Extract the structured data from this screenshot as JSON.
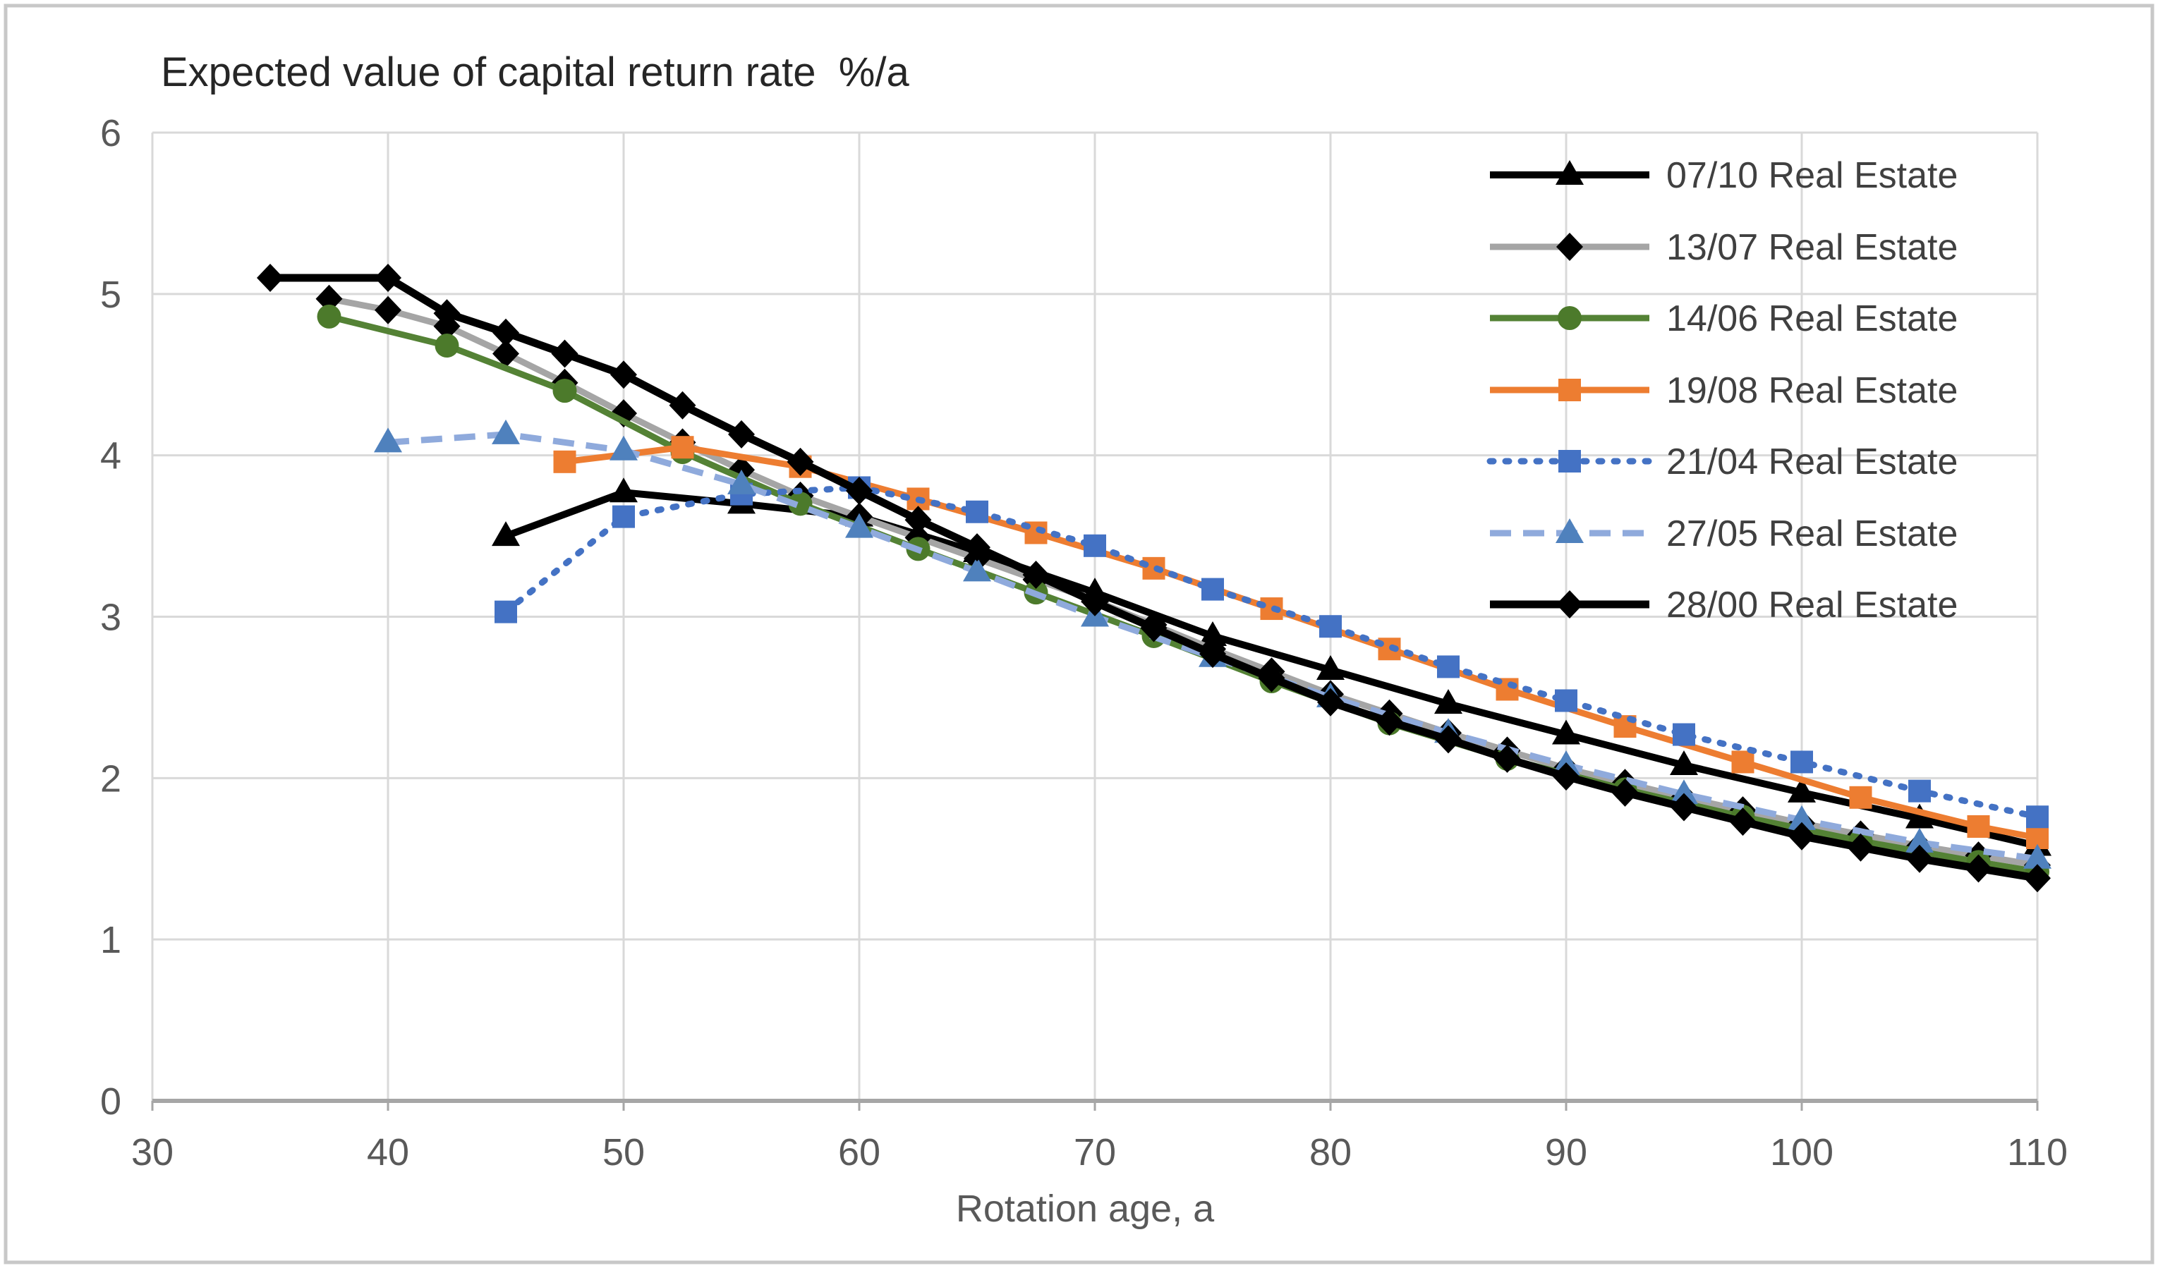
{
  "chart_data": {
    "type": "line",
    "title": "Expected value of capital return rate  %/a",
    "xlabel": "Rotation age, a",
    "ylabel": "",
    "xlim": [
      30,
      110
    ],
    "ylim": [
      0,
      6
    ],
    "x_ticks": [
      "30",
      "40",
      "50",
      "60",
      "70",
      "80",
      "90",
      "100",
      "110"
    ],
    "y_ticks": [
      "0",
      "1",
      "2",
      "3",
      "4",
      "5",
      "6"
    ],
    "grid": true,
    "legend_position": "top-right-inside",
    "series": [
      {
        "name": "07/10 Real Estate",
        "line_color": "#000000",
        "line_style": "solid",
        "line_width": 10,
        "marker": "triangle",
        "marker_color": "#000000",
        "points": [
          [
            45,
            3.5
          ],
          [
            50,
            3.77
          ],
          [
            55,
            3.7
          ],
          [
            60,
            3.62
          ],
          [
            65,
            3.4
          ],
          [
            70,
            3.15
          ],
          [
            75,
            2.88
          ],
          [
            80,
            2.67
          ],
          [
            85,
            2.46
          ],
          [
            90,
            2.27
          ],
          [
            95,
            2.08
          ],
          [
            100,
            1.91
          ],
          [
            105,
            1.75
          ],
          [
            110,
            1.58
          ]
        ]
      },
      {
        "name": "13/07 Real Estate",
        "line_color": "#A5A5A5",
        "line_style": "solid",
        "line_width": 9,
        "marker": "diamond",
        "marker_color": "#000000",
        "points": [
          [
            37.5,
            4.97
          ],
          [
            40,
            4.9
          ],
          [
            42.5,
            4.8
          ],
          [
            45,
            4.63
          ],
          [
            47.5,
            4.45
          ],
          [
            50,
            4.26
          ],
          [
            52.5,
            4.08
          ],
          [
            55,
            3.91
          ],
          [
            57.5,
            3.75
          ],
          [
            60,
            3.62
          ],
          [
            62.5,
            3.49
          ],
          [
            65,
            3.36
          ],
          [
            67.5,
            3.23
          ],
          [
            70,
            3.1
          ],
          [
            72.5,
            2.95
          ],
          [
            75,
            2.8
          ],
          [
            77.5,
            2.66
          ],
          [
            80,
            2.52
          ],
          [
            82.5,
            2.4
          ],
          [
            85,
            2.28
          ],
          [
            87.5,
            2.17
          ],
          [
            90,
            2.06
          ],
          [
            92.5,
            1.97
          ],
          [
            95,
            1.88
          ],
          [
            97.5,
            1.8
          ],
          [
            100,
            1.72
          ],
          [
            102.5,
            1.65
          ],
          [
            105,
            1.58
          ],
          [
            107.5,
            1.52
          ],
          [
            110,
            1.46
          ]
        ]
      },
      {
        "name": "14/06 Real Estate",
        "line_color": "#548235",
        "line_style": "solid",
        "line_width": 9,
        "marker": "circle",
        "marker_color": "#4C7A2B",
        "points": [
          [
            37.5,
            4.86
          ],
          [
            42.5,
            4.68
          ],
          [
            47.5,
            4.4
          ],
          [
            52.5,
            4.02
          ],
          [
            57.5,
            3.7
          ],
          [
            62.5,
            3.42
          ],
          [
            67.5,
            3.15
          ],
          [
            72.5,
            2.88
          ],
          [
            77.5,
            2.6
          ],
          [
            82.5,
            2.34
          ],
          [
            87.5,
            2.12
          ],
          [
            92.5,
            1.93
          ],
          [
            97.5,
            1.76
          ],
          [
            102.5,
            1.61
          ],
          [
            107.5,
            1.48
          ],
          [
            110,
            1.42
          ]
        ]
      },
      {
        "name": "19/08 Real Estate",
        "line_color": "#ED7D31",
        "line_style": "solid",
        "line_width": 9,
        "marker": "square",
        "marker_color": "#ED7D31",
        "points": [
          [
            47.5,
            3.96
          ],
          [
            52.5,
            4.05
          ],
          [
            57.5,
            3.93
          ],
          [
            62.5,
            3.73
          ],
          [
            67.5,
            3.52
          ],
          [
            72.5,
            3.3
          ],
          [
            77.5,
            3.05
          ],
          [
            82.5,
            2.8
          ],
          [
            87.5,
            2.55
          ],
          [
            92.5,
            2.32
          ],
          [
            97.5,
            2.1
          ],
          [
            102.5,
            1.88
          ],
          [
            107.5,
            1.7
          ],
          [
            110,
            1.63
          ]
        ]
      },
      {
        "name": "21/04 Real Estate",
        "line_color": "#4472C4",
        "line_style": "dotted",
        "line_width": 9,
        "marker": "square",
        "marker_color": "#4472C4",
        "points": [
          [
            45,
            3.03
          ],
          [
            50,
            3.62
          ],
          [
            55,
            3.76
          ],
          [
            60,
            3.8
          ],
          [
            65,
            3.65
          ],
          [
            70,
            3.44
          ],
          [
            75,
            3.17
          ],
          [
            80,
            2.94
          ],
          [
            85,
            2.69
          ],
          [
            90,
            2.48
          ],
          [
            95,
            2.27
          ],
          [
            100,
            2.1
          ],
          [
            105,
            1.92
          ],
          [
            110,
            1.76
          ]
        ]
      },
      {
        "name": "27/05 Real Estate",
        "line_color": "#8FAADC",
        "line_style": "dashed",
        "line_width": 9,
        "marker": "triangle",
        "marker_color": "#4F81BD",
        "points": [
          [
            40,
            4.08
          ],
          [
            45,
            4.13
          ],
          [
            50,
            4.03
          ],
          [
            55,
            3.82
          ],
          [
            60,
            3.55
          ],
          [
            65,
            3.28
          ],
          [
            70,
            3.0
          ],
          [
            75,
            2.75
          ],
          [
            80,
            2.5
          ],
          [
            85,
            2.28
          ],
          [
            90,
            2.08
          ],
          [
            95,
            1.9
          ],
          [
            100,
            1.74
          ],
          [
            105,
            1.6
          ],
          [
            110,
            1.5
          ]
        ]
      },
      {
        "name": "28/00 Real Estate",
        "line_color": "#000000",
        "line_style": "solid",
        "line_width": 11,
        "marker": "diamond",
        "marker_color": "#000000",
        "points": [
          [
            35,
            5.1
          ],
          [
            40,
            5.1
          ],
          [
            42.5,
            4.88
          ],
          [
            45,
            4.76
          ],
          [
            47.5,
            4.63
          ],
          [
            50,
            4.5
          ],
          [
            52.5,
            4.31
          ],
          [
            55,
            4.13
          ],
          [
            57.5,
            3.96
          ],
          [
            60,
            3.78
          ],
          [
            62.5,
            3.6
          ],
          [
            65,
            3.43
          ],
          [
            67.5,
            3.26
          ],
          [
            70,
            3.09
          ],
          [
            72.5,
            2.93
          ],
          [
            75,
            2.77
          ],
          [
            77.5,
            2.62
          ],
          [
            80,
            2.47
          ],
          [
            82.5,
            2.35
          ],
          [
            85,
            2.24
          ],
          [
            87.5,
            2.12
          ],
          [
            90,
            2.01
          ],
          [
            92.5,
            1.91
          ],
          [
            95,
            1.82
          ],
          [
            97.5,
            1.73
          ],
          [
            100,
            1.64
          ],
          [
            102.5,
            1.57
          ],
          [
            105,
            1.5
          ],
          [
            107.5,
            1.44
          ],
          [
            110,
            1.38
          ]
        ]
      }
    ]
  },
  "colors": {
    "background": "#FFFFFF",
    "outer_border": "#C8C8C8",
    "gridline": "#D9D9D9",
    "axis_line": "#A6A6A6",
    "tick_text": "#595959",
    "title_text": "#262626",
    "legend_text": "#404040"
  }
}
